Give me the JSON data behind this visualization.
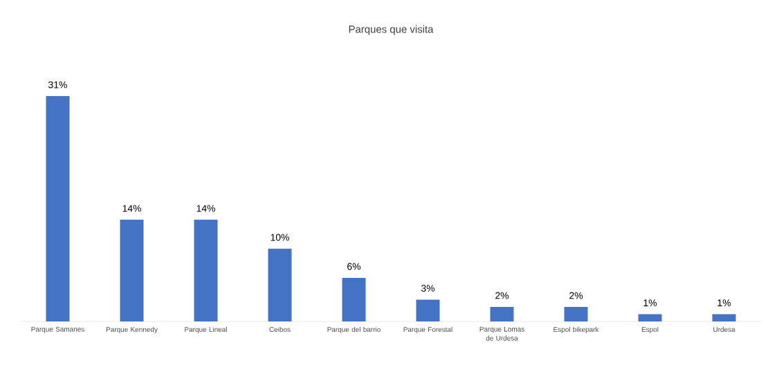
{
  "chart_data": {
    "type": "bar",
    "title": "Parques que visita",
    "categories": [
      "Parque Samanes",
      "Parque Kennedy",
      "Parque Lineal",
      "Ceibos",
      "Parque del barrio",
      "Parque Forestal",
      "Parque Lomas de Urdesa",
      "Espol bikepark",
      "Espol",
      "Urdesa"
    ],
    "values": [
      31,
      14,
      14,
      10,
      6,
      3,
      2,
      2,
      1,
      1
    ],
    "value_labels": [
      "31%",
      "14%",
      "14%",
      "10%",
      "6%",
      "3%",
      "2%",
      "2%",
      "1%",
      "1%"
    ],
    "color": "#4472c4"
  }
}
